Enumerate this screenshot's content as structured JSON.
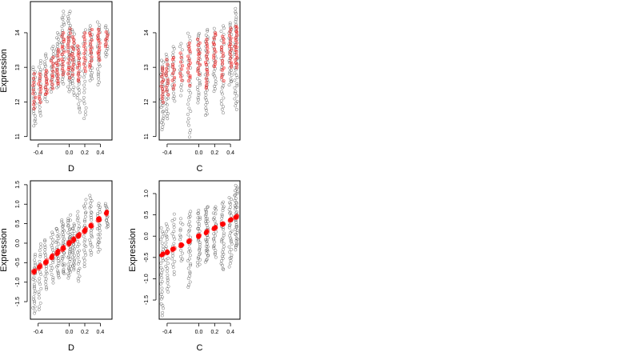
{
  "chart_data": [
    {
      "type": "scatter",
      "panel": "top-left",
      "xlabel": "D",
      "ylabel": "Expression",
      "xlim": [
        -0.5,
        0.55
      ],
      "ylim": [
        10.9,
        14.9
      ],
      "xticks": [
        -0.4,
        0.0,
        0.2,
        0.4
      ],
      "xtick_labels": [
        "-0.4",
        "0.0",
        "0.2",
        "0.4"
      ],
      "yticks": [
        11,
        12,
        13,
        14
      ],
      "ytick_labels": [
        "11",
        "12",
        "13",
        "14"
      ],
      "grid": false,
      "series_colors": [
        "#000000",
        "#ff0000"
      ],
      "groups": [
        {
          "x": -0.45,
          "black": [
            11.3,
            13.0,
            25
          ],
          "red": [
            11.8,
            12.8,
            10
          ]
        },
        {
          "x": -0.38,
          "black": [
            11.6,
            13.2,
            20
          ],
          "red": [
            12.0,
            12.8,
            10
          ]
        },
        {
          "x": -0.3,
          "black": [
            12.0,
            13.4,
            20
          ],
          "red": [
            12.2,
            12.9,
            10
          ]
        },
        {
          "x": -0.22,
          "black": [
            12.3,
            13.6,
            20
          ],
          "red": [
            12.4,
            13.3,
            10
          ]
        },
        {
          "x": -0.15,
          "black": [
            12.4,
            14.0,
            25
          ],
          "red": [
            12.5,
            13.5,
            12
          ]
        },
        {
          "x": -0.08,
          "black": [
            12.5,
            14.6,
            30
          ],
          "red": [
            12.8,
            14.0,
            14
          ]
        },
        {
          "x": 0.0,
          "black": [
            12.3,
            14.6,
            35
          ],
          "red": [
            12.7,
            14.1,
            14
          ]
        },
        {
          "x": 0.05,
          "black": [
            12.2,
            14.1,
            25
          ],
          "red": [
            12.8,
            13.9,
            12
          ]
        },
        {
          "x": 0.12,
          "black": [
            11.7,
            13.6,
            25
          ],
          "red": [
            12.6,
            13.6,
            12
          ]
        },
        {
          "x": 0.2,
          "black": [
            11.5,
            14.1,
            25
          ],
          "red": [
            12.9,
            14.0,
            12
          ]
        },
        {
          "x": 0.28,
          "black": [
            12.6,
            14.2,
            25
          ],
          "red": [
            13.0,
            14.1,
            12
          ]
        },
        {
          "x": 0.38,
          "black": [
            12.5,
            14.3,
            25
          ],
          "red": [
            13.2,
            14.1,
            12
          ]
        },
        {
          "x": 0.48,
          "black": [
            13.3,
            14.2,
            15
          ],
          "red": [
            13.6,
            14.0,
            6
          ]
        }
      ]
    },
    {
      "type": "scatter",
      "panel": "top-right",
      "xlabel": "C",
      "ylabel": "",
      "xlim": [
        -0.5,
        0.52
      ],
      "ylim": [
        10.9,
        14.9
      ],
      "xticks": [
        -0.4,
        0.0,
        0.2,
        0.4
      ],
      "xtick_labels": [
        "-0.4",
        "0.0",
        "0.2",
        "0.4"
      ],
      "yticks": [
        11,
        12,
        13,
        14
      ],
      "ytick_labels": [
        "11",
        "12",
        "13",
        "14"
      ],
      "grid": false,
      "series_colors": [
        "#000000",
        "#ff0000"
      ],
      "groups": [
        {
          "x": -0.46,
          "black": [
            11.2,
            13.2,
            30
          ],
          "red": [
            12.0,
            13.0,
            12
          ]
        },
        {
          "x": -0.4,
          "black": [
            11.5,
            13.4,
            25
          ],
          "red": [
            12.2,
            13.2,
            10
          ]
        },
        {
          "x": -0.32,
          "black": [
            12.0,
            13.6,
            20
          ],
          "red": [
            12.4,
            13.3,
            10
          ]
        },
        {
          "x": -0.22,
          "black": [
            12.2,
            13.7,
            15
          ],
          "red": [
            12.6,
            13.4,
            8
          ]
        },
        {
          "x": -0.12,
          "black": [
            11.0,
            14.0,
            30
          ],
          "red": [
            12.5,
            13.7,
            14
          ]
        },
        {
          "x": 0.0,
          "black": [
            12.0,
            14.0,
            30
          ],
          "red": [
            12.8,
            13.8,
            12
          ]
        },
        {
          "x": 0.1,
          "black": [
            11.6,
            14.1,
            35
          ],
          "red": [
            12.4,
            13.8,
            16
          ]
        },
        {
          "x": 0.2,
          "black": [
            12.3,
            14.1,
            25
          ],
          "red": [
            13.0,
            14.0,
            12
          ]
        },
        {
          "x": 0.3,
          "black": [
            11.7,
            14.2,
            30
          ],
          "red": [
            12.6,
            13.9,
            14
          ]
        },
        {
          "x": 0.4,
          "black": [
            12.5,
            14.3,
            30
          ],
          "red": [
            13.0,
            14.1,
            14
          ]
        },
        {
          "x": 0.47,
          "black": [
            11.8,
            14.7,
            40
          ],
          "red": [
            13.0,
            14.2,
            18
          ]
        }
      ]
    },
    {
      "type": "scatter",
      "panel": "bottom-left",
      "xlabel": "D",
      "ylabel": "Expression",
      "xlim": [
        -0.5,
        0.55
      ],
      "ylim": [
        -1.95,
        1.6
      ],
      "xticks": [
        -0.4,
        0.0,
        0.2,
        0.4
      ],
      "xtick_labels": [
        "-0.4",
        "0.0",
        "0.2",
        "0.4"
      ],
      "yticks": [
        -1.5,
        -1.0,
        -0.5,
        0.0,
        0.5,
        1.0,
        1.5
      ],
      "ytick_labels": [
        "-1.5",
        "-1.0",
        "-0.5",
        "0.0",
        "0.5",
        "1.0",
        "1.5"
      ],
      "grid": false,
      "series_colors": [
        "#000000",
        "#ff0000"
      ],
      "fit": {
        "slope": 1.6,
        "intercept": 0.0,
        "spread": 0.08
      },
      "groups": [
        {
          "x": -0.45,
          "black": [
            -1.8,
            -0.3,
            25
          ]
        },
        {
          "x": -0.38,
          "black": [
            -1.7,
            0.0,
            20
          ]
        },
        {
          "x": -0.3,
          "black": [
            -1.2,
            0.1,
            20
          ]
        },
        {
          "x": -0.22,
          "black": [
            -1.0,
            0.3,
            20
          ]
        },
        {
          "x": -0.15,
          "black": [
            -0.9,
            0.4,
            25
          ]
        },
        {
          "x": -0.08,
          "black": [
            -0.8,
            0.6,
            30
          ]
        },
        {
          "x": 0.0,
          "black": [
            -0.9,
            0.7,
            35
          ]
        },
        {
          "x": 0.05,
          "black": [
            -0.7,
            0.5,
            25
          ]
        },
        {
          "x": 0.12,
          "black": [
            -1.0,
            0.8,
            25
          ]
        },
        {
          "x": 0.2,
          "black": [
            -0.6,
            1.1,
            25
          ]
        },
        {
          "x": 0.28,
          "black": [
            -0.3,
            1.2,
            25
          ]
        },
        {
          "x": 0.38,
          "black": [
            -0.2,
            1.0,
            25
          ]
        },
        {
          "x": 0.48,
          "black": [
            0.4,
            1.0,
            15
          ]
        }
      ]
    },
    {
      "type": "scatter",
      "panel": "bottom-right",
      "xlabel": "C",
      "ylabel": "Expression",
      "xlim": [
        -0.5,
        0.52
      ],
      "ylim": [
        -1.95,
        1.3
      ],
      "xticks": [
        -0.4,
        0.0,
        0.2,
        0.4
      ],
      "xtick_labels": [
        "-0.4",
        "0.0",
        "0.2",
        "0.4"
      ],
      "yticks": [
        -1.5,
        -1.0,
        -0.5,
        0.0,
        0.5,
        1.0
      ],
      "ytick_labels": [
        "-1.5",
        "-1.0",
        "-0.5",
        "0.0",
        "0.5",
        "1.0"
      ],
      "grid": false,
      "series_colors": [
        "#000000",
        "#ff0000"
      ],
      "fit": {
        "slope": 0.95,
        "intercept": 0.0,
        "spread": 0.05
      },
      "groups": [
        {
          "x": -0.46,
          "black": [
            -1.85,
            0.2,
            30
          ]
        },
        {
          "x": -0.4,
          "black": [
            -1.3,
            0.3,
            25
          ]
        },
        {
          "x": -0.32,
          "black": [
            -0.9,
            0.5,
            20
          ]
        },
        {
          "x": -0.22,
          "black": [
            -0.6,
            0.4,
            15
          ]
        },
        {
          "x": -0.12,
          "black": [
            -1.2,
            0.6,
            30
          ]
        },
        {
          "x": 0.0,
          "black": [
            -0.7,
            0.6,
            30
          ]
        },
        {
          "x": 0.1,
          "black": [
            -0.6,
            0.7,
            35
          ]
        },
        {
          "x": 0.2,
          "black": [
            -0.5,
            0.7,
            25
          ]
        },
        {
          "x": 0.3,
          "black": [
            -0.8,
            0.8,
            30
          ]
        },
        {
          "x": 0.4,
          "black": [
            -0.7,
            0.9,
            30
          ]
        },
        {
          "x": 0.47,
          "black": [
            -0.3,
            1.2,
            40
          ]
        }
      ]
    }
  ],
  "colors": {
    "black_points": "#000000",
    "red_points": "#ff0000",
    "frame": "#000000",
    "background": "#ffffff"
  }
}
